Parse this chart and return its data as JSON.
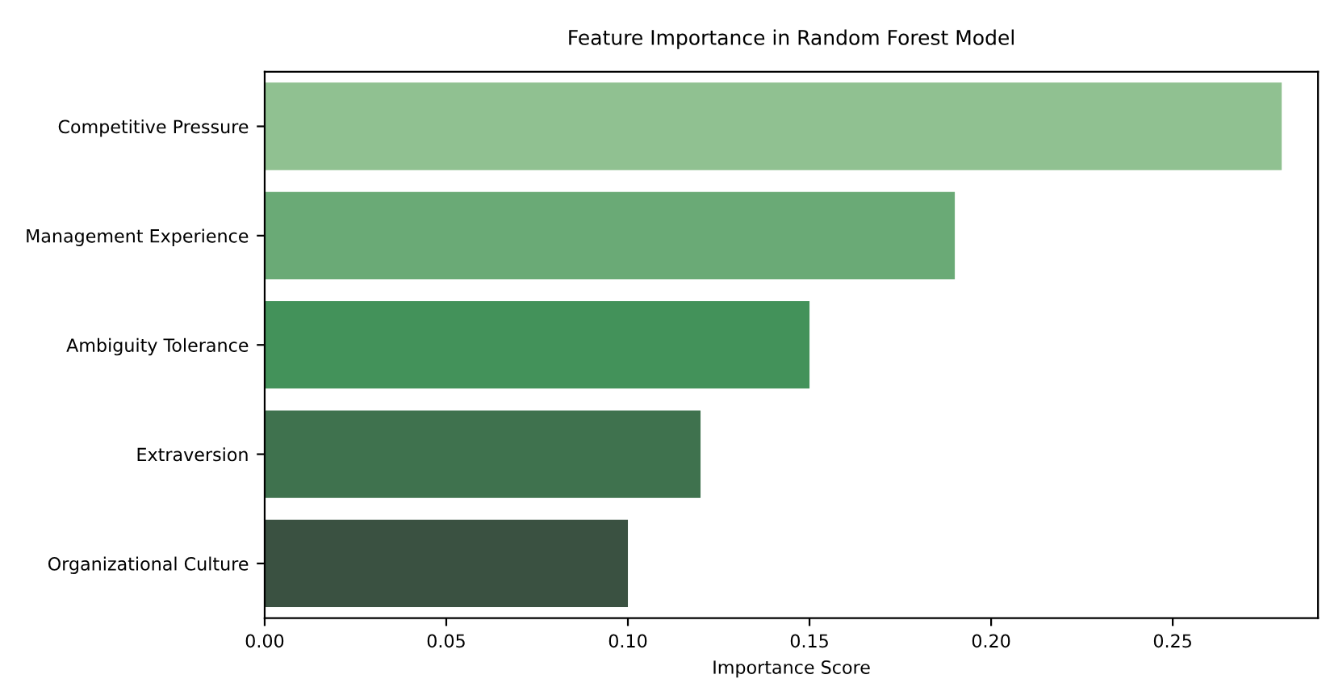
{
  "chart_data": {
    "type": "bar",
    "orientation": "horizontal",
    "title": "Feature Importance in Random Forest Model",
    "xlabel": "Importance Score",
    "categories": [
      "Competitive Pressure",
      "Management Experience",
      "Ambiguity Tolerance",
      "Extraversion",
      "Organizational Culture"
    ],
    "values": [
      0.28,
      0.19,
      0.15,
      0.12,
      0.1
    ],
    "colors": [
      "#90c191",
      "#6aaa76",
      "#43925a",
      "#3f724e",
      "#3a5141"
    ],
    "xlim": [
      0,
      0.29
    ],
    "xticks": [
      {
        "value": 0,
        "label": "0.00"
      },
      {
        "value": 0.05,
        "label": "0.05"
      },
      {
        "value": 0.1,
        "label": "0.10"
      },
      {
        "value": 0.15,
        "label": "0.15"
      },
      {
        "value": 0.2,
        "label": "0.20"
      },
      {
        "value": 0.25,
        "label": "0.25"
      }
    ],
    "grid": false
  }
}
